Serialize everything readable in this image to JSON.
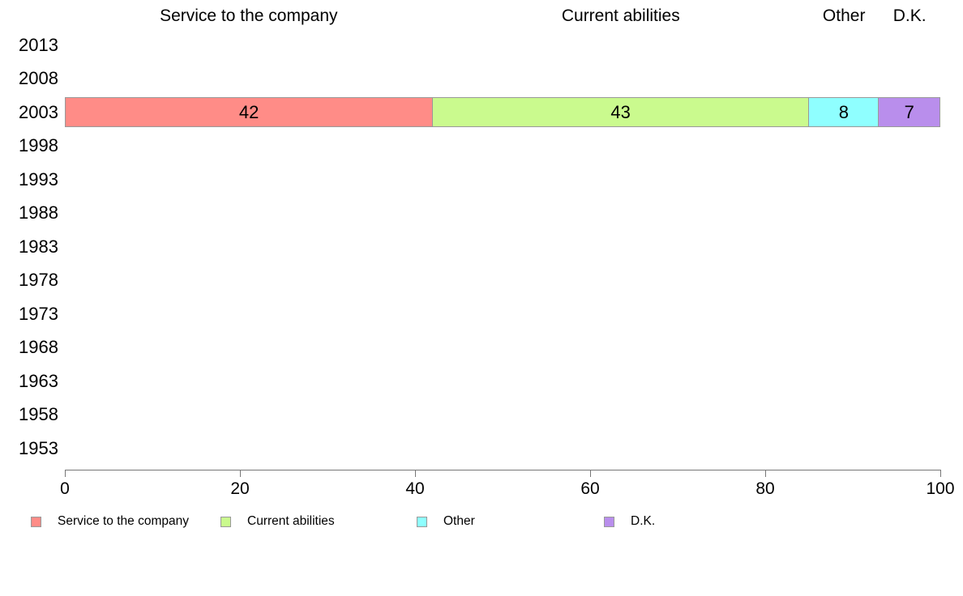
{
  "chart_data": {
    "type": "bar",
    "orientation": "horizontal",
    "stacked": true,
    "title": "",
    "xlabel": "",
    "ylabel": "",
    "categories": [
      "2013",
      "2008",
      "2003",
      "1998",
      "1993",
      "1988",
      "1983",
      "1978",
      "1973",
      "1968",
      "1963",
      "1958",
      "1953"
    ],
    "series": [
      {
        "name": "Service to the company",
        "color": "#ff8c87",
        "values_by_category": {
          "2003": 42
        }
      },
      {
        "name": "Current abilities",
        "color": "#cafa8e",
        "values_by_category": {
          "2003": 43
        }
      },
      {
        "name": "Other",
        "color": "#8fffff",
        "values_by_category": {
          "2003": 8
        }
      },
      {
        "name": "D.K.",
        "color": "#b98eec",
        "values_by_category": {
          "2003": 7
        }
      }
    ],
    "data_labels": {
      "2003": [
        42,
        43,
        8,
        7
      ]
    },
    "column_headers": [
      "Service to the company",
      "Current abilities",
      "Other",
      "D.K."
    ],
    "xlim": [
      0,
      100
    ],
    "xticks": [
      0,
      20,
      40,
      60,
      80,
      100
    ],
    "grid": false,
    "legend_position": "bottom",
    "legend": [
      {
        "label": "Service to the company",
        "color": "#ff8c87"
      },
      {
        "label": "Current abilities",
        "color": "#cafa8e"
      },
      {
        "label": "Other",
        "color": "#8fffff"
      },
      {
        "label": "D.K.",
        "color": "#b98eec"
      }
    ],
    "segment_border_color": "#999999",
    "axis_color": "#777777",
    "text_color": "#000000",
    "background_color": "#ffffff"
  }
}
